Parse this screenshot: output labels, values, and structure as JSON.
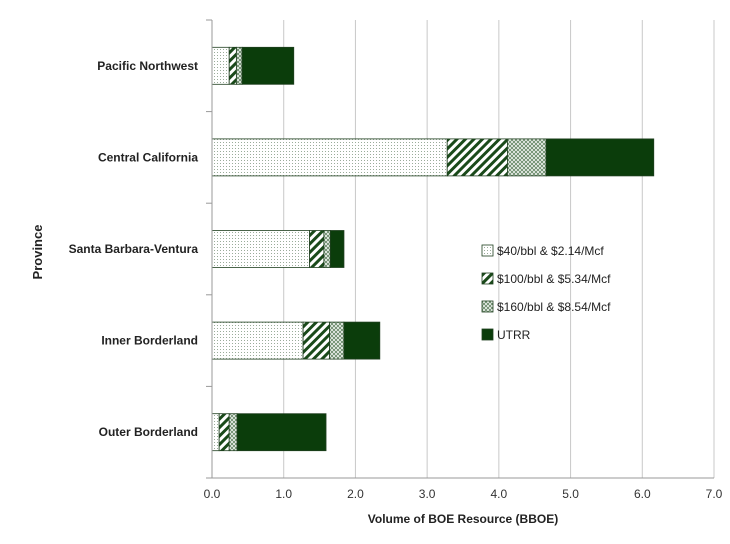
{
  "chart_data": {
    "type": "bar",
    "orientation": "horizontal",
    "stacked": true,
    "title": "",
    "xlabel": "Volume of BOE Resource (BBOE)",
    "ylabel": "Province",
    "xlim": [
      0,
      7
    ],
    "x_ticks": [
      "0.0",
      "1.0",
      "2.0",
      "3.0",
      "4.0",
      "5.0",
      "6.0",
      "7.0"
    ],
    "grid": "vertical",
    "legend_position": "center-right",
    "categories": [
      "Pacific Northwest",
      "Central California",
      "Santa Barbara-Ventura",
      "Inner Borderland",
      "Outer Borderland"
    ],
    "series": [
      {
        "name": "$40/bbl & $2.14/Mcf",
        "pattern": "dots",
        "color": "#ffffff",
        "values": [
          0.24,
          3.28,
          1.36,
          1.27,
          0.1
        ]
      },
      {
        "name": "$100/bbl & $5.34/Mcf",
        "pattern": "diagonal",
        "color": "#1a4a1a",
        "values": [
          0.1,
          0.84,
          0.2,
          0.37,
          0.14
        ]
      },
      {
        "name": "$160/bbl & $8.54/Mcf",
        "pattern": "crosshatch",
        "color": "#7a9a7a",
        "values": [
          0.08,
          0.54,
          0.09,
          0.2,
          0.11
        ]
      },
      {
        "name": "UTRR",
        "pattern": "solid",
        "color": "#0b3d0b",
        "values": [
          0.72,
          1.5,
          0.19,
          0.5,
          1.24
        ]
      }
    ]
  }
}
